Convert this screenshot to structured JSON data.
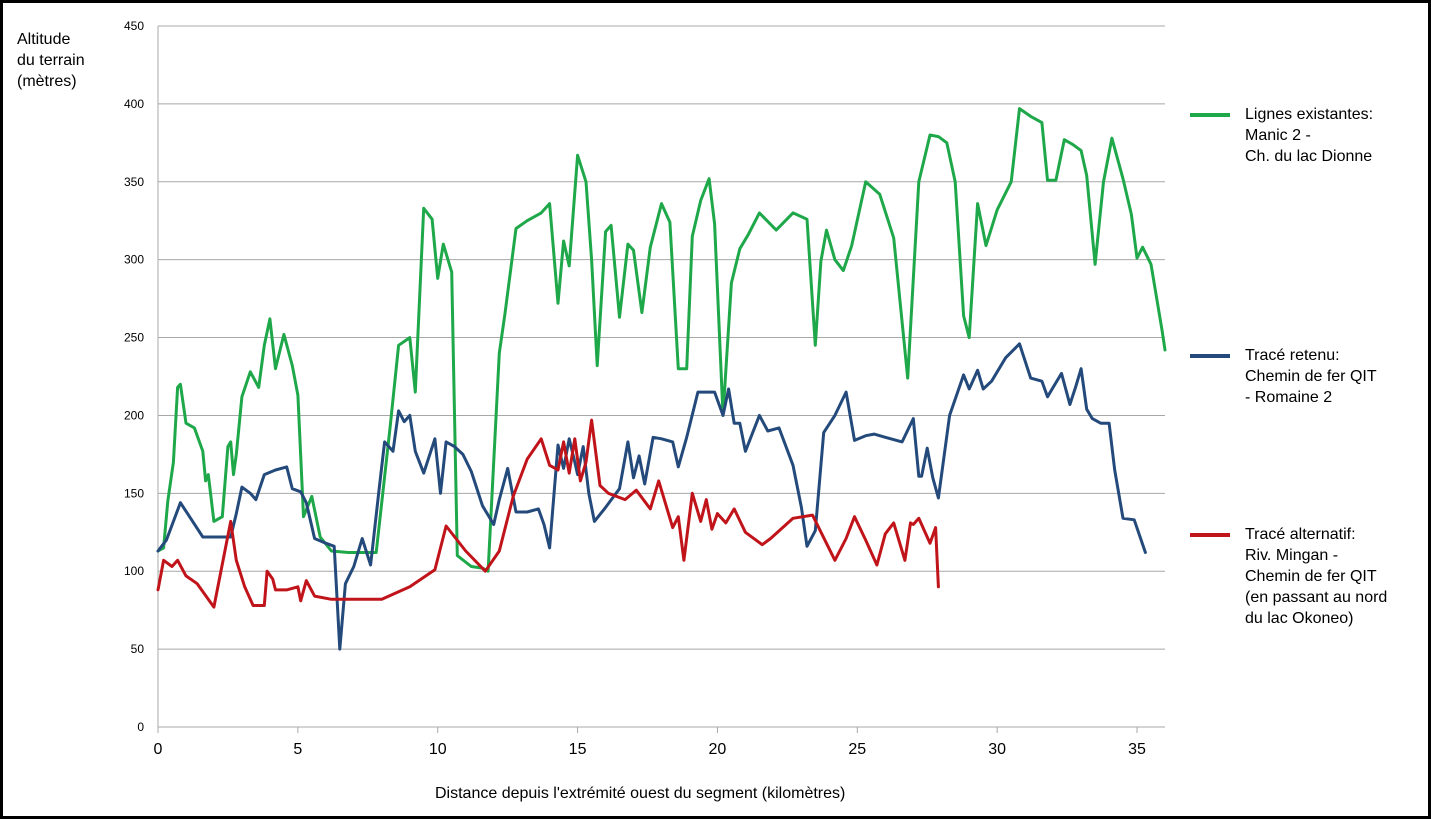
{
  "chart_data": {
    "type": "line",
    "ylabel_lines": [
      "Altitude",
      "du terrain",
      "(mètres)"
    ],
    "xlabel": "Distance depuis l'extrémité ouest du segment (kilomètres)",
    "xlim": [
      0,
      36
    ],
    "ylim": [
      0,
      450
    ],
    "xticks": [
      0,
      5,
      10,
      15,
      20,
      25,
      30,
      35
    ],
    "yticks": [
      0,
      50,
      100,
      150,
      200,
      250,
      300,
      350,
      400,
      450
    ],
    "grid": "horizontal",
    "legend_position": "right",
    "series": [
      {
        "name": "Lignes existantes: Manic 2 - Ch. du lac Dionne",
        "legend_lines": [
          "Lignes existantes:",
          "Manic 2 -",
          "Ch. du lac Dionne"
        ],
        "color": "#1fa84a",
        "x": [
          0.0,
          0.2,
          0.35,
          0.55,
          0.7,
          0.8,
          1.0,
          1.3,
          1.6,
          1.7,
          1.8,
          2.0,
          2.3,
          2.5,
          2.6,
          2.7,
          2.8,
          3.0,
          3.3,
          3.6,
          3.8,
          4.0,
          4.2,
          4.5,
          4.8,
          5.0,
          5.2,
          5.5,
          5.8,
          6.2,
          6.8,
          7.3,
          7.8,
          8.3,
          8.6,
          9.0,
          9.2,
          9.5,
          9.8,
          10.0,
          10.2,
          10.5,
          10.7,
          11.2,
          11.6,
          11.8,
          12.2,
          12.4,
          12.8,
          13.2,
          13.7,
          14.0,
          14.3,
          14.5,
          14.7,
          15.0,
          15.3,
          15.5,
          15.7,
          16.0,
          16.2,
          16.5,
          16.8,
          17.0,
          17.3,
          17.6,
          18.0,
          18.3,
          18.6,
          18.9,
          19.1,
          19.4,
          19.7,
          19.9,
          20.2,
          20.5,
          20.8,
          21.1,
          21.5,
          22.1,
          22.7,
          23.2,
          23.5,
          23.7,
          23.9,
          24.2,
          24.5,
          24.8,
          25.3,
          25.8,
          26.3,
          26.8,
          27.2,
          27.6,
          27.9,
          28.2,
          28.5,
          28.8,
          29.0,
          29.3,
          29.6,
          30.0,
          30.5,
          30.8,
          31.2,
          31.6,
          31.8,
          32.1,
          32.4,
          32.7,
          33.0,
          33.2,
          33.5,
          33.8,
          34.1,
          34.5,
          34.8,
          35.0,
          35.2,
          35.5,
          35.9,
          36.0
        ],
        "y": [
          113,
          115,
          145,
          170,
          218,
          220,
          195,
          192,
          177,
          158,
          162,
          132,
          135,
          180,
          183,
          162,
          175,
          212,
          228,
          218,
          245,
          262,
          230,
          252,
          232,
          213,
          135,
          148,
          122,
          113,
          112,
          112,
          112,
          193,
          245,
          250,
          215,
          333,
          326,
          288,
          310,
          292,
          110,
          103,
          102,
          100,
          240,
          265,
          320,
          325,
          330,
          336,
          272,
          312,
          296,
          367,
          350,
          300,
          232,
          318,
          322,
          263,
          310,
          306,
          266,
          308,
          336,
          324,
          230,
          230,
          315,
          338,
          352,
          323,
          200,
          285,
          307,
          316,
          330,
          319,
          330,
          326,
          245,
          299,
          319,
          300,
          293,
          309,
          350,
          342,
          314,
          224,
          350,
          380,
          379,
          375,
          350,
          264,
          250,
          336,
          309,
          332,
          350,
          397,
          392,
          388,
          351,
          351,
          377,
          374,
          370,
          354,
          297,
          350,
          378,
          352,
          329,
          301,
          308,
          297,
          254,
          242
        ]
      },
      {
        "name": "Tracé retenu: Chemin de fer QIT - Romaine 2",
        "legend_lines": [
          "Tracé retenu:",
          "Chemin de fer QIT",
          "- Romaine 2"
        ],
        "color": "#244a7c",
        "x": [
          0.0,
          0.3,
          0.8,
          1.2,
          1.6,
          2.0,
          2.3,
          2.6,
          2.8,
          3.0,
          3.3,
          3.5,
          3.8,
          4.2,
          4.6,
          4.8,
          5.1,
          5.3,
          5.6,
          6.0,
          6.3,
          6.5,
          6.7,
          7.0,
          7.3,
          7.6,
          7.9,
          8.1,
          8.4,
          8.6,
          8.8,
          9.0,
          9.2,
          9.5,
          9.9,
          10.1,
          10.3,
          10.6,
          10.9,
          11.2,
          11.6,
          12.0,
          12.2,
          12.5,
          12.8,
          13.2,
          13.6,
          13.8,
          14.0,
          14.3,
          14.5,
          14.7,
          14.9,
          15.0,
          15.2,
          15.4,
          15.6,
          16.0,
          16.5,
          16.8,
          17.0,
          17.2,
          17.4,
          17.7,
          18.0,
          18.4,
          18.6,
          18.9,
          19.3,
          19.6,
          19.9,
          20.2,
          20.4,
          20.6,
          20.8,
          21.0,
          21.5,
          21.8,
          22.2,
          22.7,
          23.0,
          23.2,
          23.5,
          23.8,
          24.2,
          24.6,
          24.9,
          25.3,
          25.6,
          26.0,
          26.6,
          27.0,
          27.2,
          27.3,
          27.5,
          27.7,
          27.9,
          28.3,
          28.8,
          29.0,
          29.3,
          29.5,
          29.8,
          30.3,
          30.8,
          31.2,
          31.6,
          31.8,
          32.0,
          32.3,
          32.6,
          32.8,
          33.0,
          33.2,
          33.4,
          33.7,
          34.0,
          34.2,
          34.5,
          34.9,
          35.3
        ],
        "y": [
          113,
          120,
          144,
          133,
          122,
          122,
          122,
          122,
          137,
          154,
          150,
          146,
          162,
          165,
          167,
          153,
          151,
          144,
          121,
          118,
          116,
          50,
          92,
          103,
          121,
          104,
          152,
          183,
          177,
          203,
          196,
          200,
          177,
          163,
          185,
          150,
          183,
          180,
          175,
          164,
          142,
          130,
          146,
          166,
          138,
          138,
          140,
          130,
          115,
          181,
          166,
          185,
          170,
          162,
          180,
          150,
          132,
          141,
          153,
          183,
          160,
          174,
          156,
          186,
          185,
          183,
          167,
          186,
          215,
          215,
          215,
          200,
          217,
          195,
          195,
          177,
          200,
          190,
          192,
          168,
          141,
          116,
          126,
          189,
          200,
          215,
          184,
          187,
          188,
          186,
          183,
          198,
          161,
          161,
          179,
          160,
          147,
          200,
          226,
          217,
          229,
          217,
          222,
          237,
          246,
          224,
          222,
          212,
          218,
          227,
          207,
          218,
          230,
          204,
          198,
          195,
          195,
          165,
          134,
          133,
          112
        ]
      },
      {
        "name": "Tracé alternatif: Riv. Mingan - Chemin de fer QIT (en passant au nord du lac Okoneo)",
        "legend_lines": [
          "Tracé alternatif:",
          "Riv. Mingan -",
          "Chemin de fer QIT",
          "(en passant au nord",
          "du lac Okoneo)"
        ],
        "color": "#c0141a",
        "x": [
          0.0,
          0.2,
          0.5,
          0.7,
          1.0,
          1.4,
          2.0,
          2.6,
          2.8,
          3.1,
          3.4,
          3.8,
          3.9,
          4.1,
          4.2,
          4.6,
          5.0,
          5.1,
          5.3,
          5.6,
          6.2,
          6.8,
          7.4,
          8.0,
          9.0,
          9.9,
          10.3,
          11.0,
          11.7,
          12.2,
          12.7,
          13.2,
          13.7,
          14.0,
          14.3,
          14.5,
          14.7,
          14.9,
          15.1,
          15.3,
          15.5,
          15.8,
          16.1,
          16.7,
          17.1,
          17.6,
          17.9,
          18.2,
          18.4,
          18.6,
          18.8,
          19.1,
          19.4,
          19.6,
          19.8,
          20.0,
          20.3,
          20.6,
          21.0,
          21.6,
          21.9,
          22.7,
          23.4,
          24.2,
          24.6,
          24.9,
          25.3,
          25.7,
          26.0,
          26.3,
          26.7,
          26.9,
          27.0,
          27.2,
          27.6,
          27.8,
          27.9
        ],
        "y": [
          88,
          107,
          103,
          107,
          97,
          92,
          77,
          132,
          107,
          90,
          78,
          78,
          100,
          95,
          88,
          88,
          90,
          81,
          94,
          84,
          82,
          82,
          82,
          82,
          90,
          101,
          129,
          113,
          100,
          113,
          148,
          172,
          185,
          168,
          165,
          183,
          163,
          185,
          158,
          170,
          197,
          155,
          150,
          146,
          152,
          140,
          158,
          140,
          128,
          135,
          107,
          150,
          132,
          146,
          127,
          137,
          131,
          140,
          125,
          117,
          121,
          134,
          136,
          107,
          121,
          135,
          120,
          104,
          124,
          131,
          107,
          131,
          130,
          134,
          118,
          128,
          90
        ]
      }
    ]
  }
}
